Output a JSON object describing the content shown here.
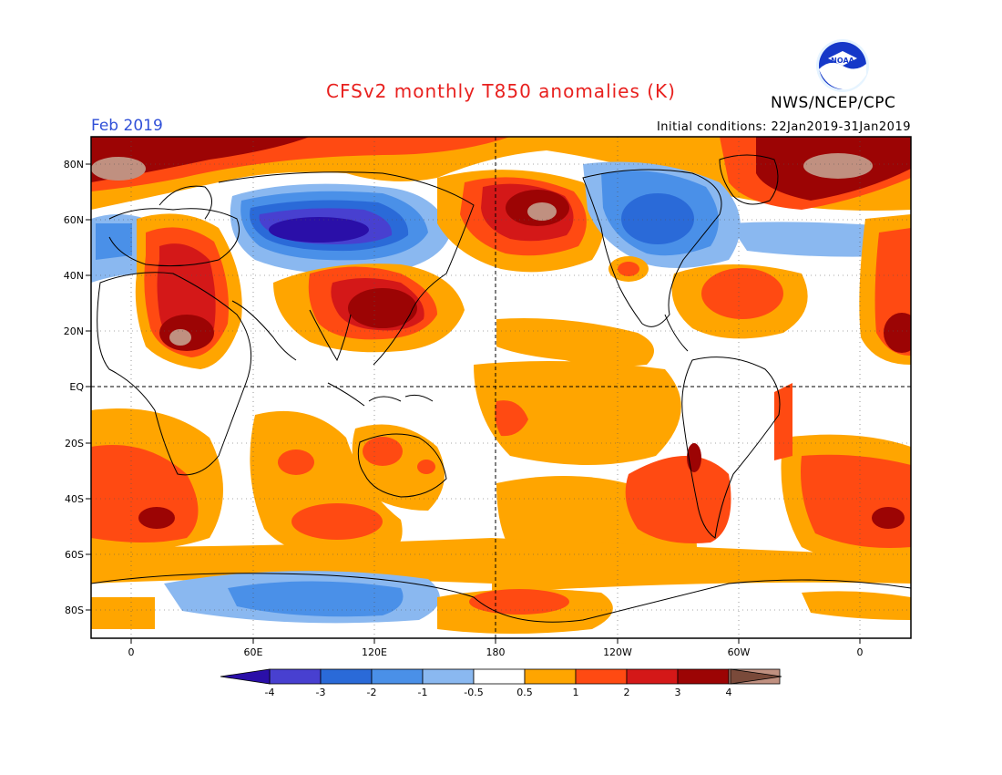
{
  "title": "CFSv2 monthly T850 anomalies (K)",
  "month_label": "Feb 2019",
  "initial_conditions": "Initial conditions: 22Jan2019-31Jan2019",
  "agency": "NWS/NCEP/CPC",
  "logo_text": "NOAA",
  "colors": {
    "title": "#e8201e",
    "month": "#3050d8",
    "land_outline": "#000000",
    "neg4": "#2a0fa8",
    "neg3": "#4840d0",
    "neg2": "#2a6ad8",
    "neg1": "#4a90e8",
    "neg05": "#8ab8f0",
    "neutral": "#ffffff",
    "pos05": "#ffa500",
    "pos1": "#ff4a12",
    "pos2": "#d41818",
    "pos3": "#9c0404",
    "pos4": "#c09080",
    "beyond_pos4": "#7a4a3a"
  },
  "map": {
    "lat_labels": [
      "80N",
      "60N",
      "40N",
      "20N",
      "EQ",
      "20S",
      "40S",
      "60S",
      "80S"
    ],
    "lon_labels": [
      "0",
      "60E",
      "120E",
      "180",
      "120W",
      "60W",
      "0"
    ],
    "reference_lines": [
      "EQ",
      "180"
    ]
  },
  "colorbar": {
    "labels": [
      "-4",
      "-3",
      "-2",
      "-1",
      "-0.5",
      "0.5",
      "1",
      "2",
      "3",
      "4"
    ],
    "bin_colors": [
      "#4840d0",
      "#2a6ad8",
      "#4a90e8",
      "#8ab8f0",
      "#ffffff",
      "#ffa500",
      "#ff4a12",
      "#d41818",
      "#9c0404",
      "#c09080"
    ]
  }
}
